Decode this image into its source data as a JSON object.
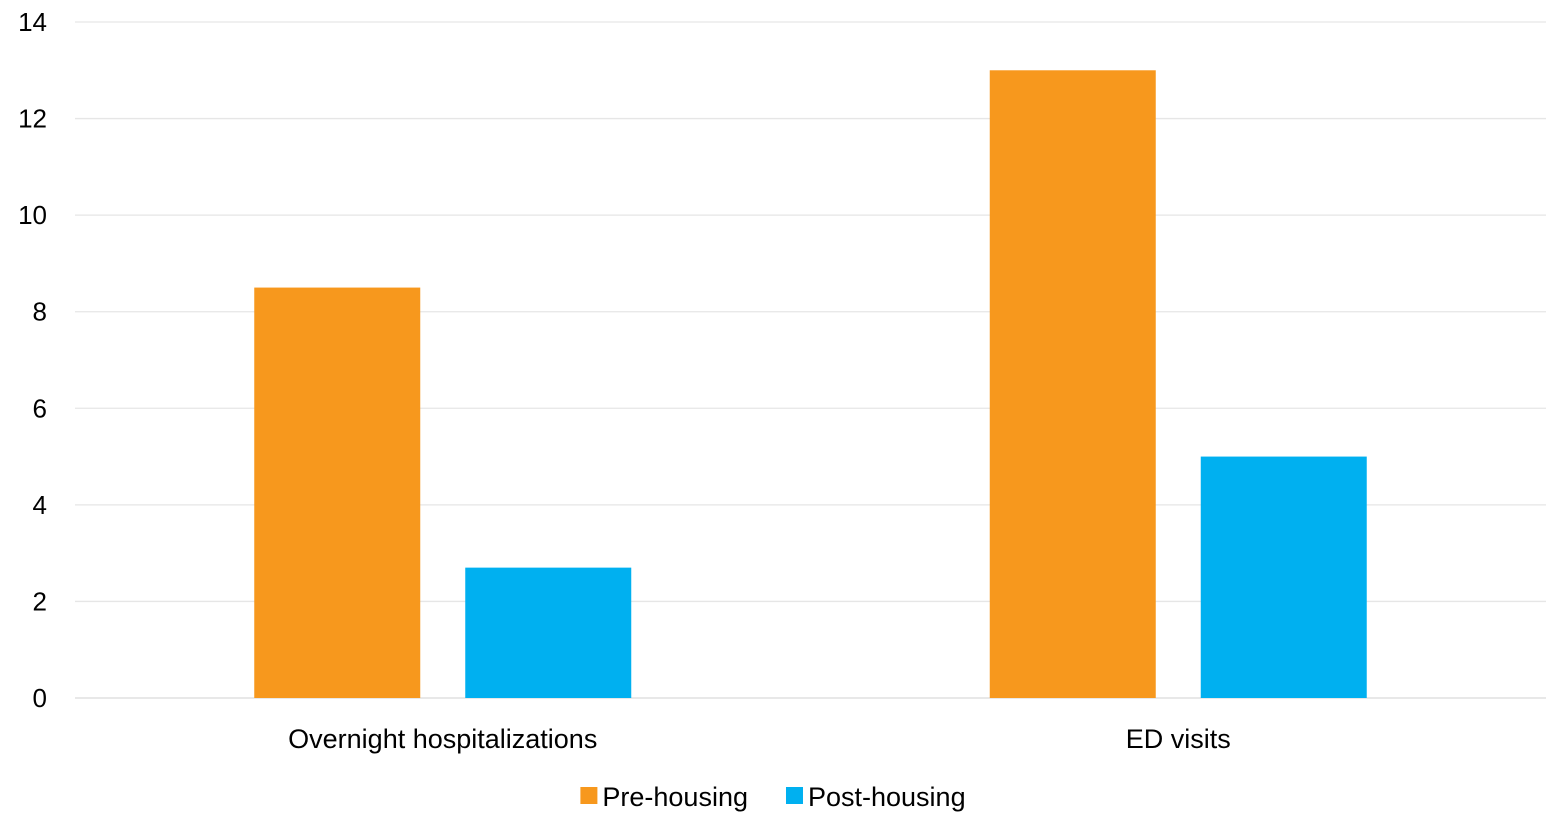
{
  "chart_data": {
    "type": "bar",
    "title": "",
    "xlabel": "",
    "ylabel": "",
    "categories": [
      "Overnight hospitalizations",
      "ED visits"
    ],
    "series": [
      {
        "name": "Pre-housing",
        "color": "#f7981d",
        "values": [
          8.5,
          13
        ]
      },
      {
        "name": "Post-housing",
        "color": "#00b0f0",
        "values": [
          2.7,
          5
        ]
      }
    ],
    "ylim": [
      0,
      14
    ],
    "yticks": [
      0,
      2,
      4,
      6,
      8,
      10,
      12,
      14
    ],
    "grid": true,
    "legend": "bottom"
  }
}
